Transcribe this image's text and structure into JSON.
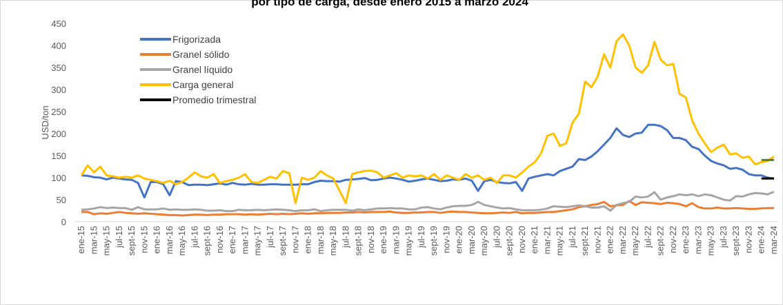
{
  "chart_data": {
    "type": "line",
    "title": "por tipo de carga, desde enero 2015 a marzo 2024",
    "y_label": "USD/ton",
    "categories": [
      "ene-15",
      null,
      "mar-15",
      null,
      "may-15",
      null,
      "jul-15",
      null,
      "sept-15",
      null,
      "nov-15",
      null,
      "ene-16",
      null,
      "mar-16",
      null,
      "may-16",
      null,
      "jul-16",
      null,
      "sept-16",
      null,
      "nov-16",
      null,
      "ene-17",
      null,
      "mar-17",
      null,
      "may-17",
      null,
      "jul-17",
      null,
      "sept-17",
      null,
      "nov-17",
      null,
      "ene-18",
      null,
      "mar-18",
      null,
      "may-18",
      null,
      "jul-18",
      null,
      "sept-18",
      null,
      "nov-18",
      null,
      "ene-19",
      null,
      "mar-19",
      null,
      "may-19",
      null,
      "jul-19",
      null,
      "sept-19",
      null,
      "nov-19",
      null,
      "ene-20",
      null,
      "mar-20",
      null,
      "may-20",
      null,
      "jul-20",
      null,
      "sept-20",
      null,
      "nov-20",
      null,
      "ene-21",
      null,
      "mar-21",
      null,
      "may-21",
      null,
      "jul-21",
      null,
      "sept-21",
      null,
      "nov-21",
      null,
      "ene-22",
      null,
      "mar-22",
      null,
      "may-22",
      null,
      "jul-22",
      null,
      "sept-22",
      null,
      "nov-22",
      null,
      "ene-23",
      null,
      "mar-23",
      null,
      "may-23",
      null,
      "jul-23",
      null,
      "sept-23",
      null,
      "nov-23",
      null,
      "ene-24",
      null,
      "mar-24"
    ],
    "series": [
      {
        "name": "Frigorizada",
        "color": "#4472c4",
        "values": [
          105,
          104,
          101,
          100,
          96,
          100,
          98,
          96,
          95,
          88,
          55,
          90,
          90,
          85,
          60,
          92,
          90,
          83,
          84,
          84,
          83,
          85,
          87,
          84,
          88,
          85,
          84,
          86,
          84,
          84,
          85,
          85,
          84,
          84,
          84,
          85,
          85,
          90,
          93,
          92,
          92,
          91,
          95,
          96,
          97,
          99,
          94,
          95,
          98,
          100,
          98,
          95,
          91,
          93,
          96,
          98,
          95,
          92,
          93,
          96,
          95,
          98,
          93,
          70,
          92,
          95,
          90,
          88,
          87,
          90,
          70,
          98,
          102,
          105,
          108,
          105,
          115,
          120,
          125,
          142,
          140,
          148,
          160,
          175,
          190,
          212,
          197,
          192,
          200,
          202,
          220,
          220,
          217,
          208,
          190,
          190,
          185,
          170,
          165,
          150,
          138,
          132,
          128,
          120,
          122,
          118,
          108,
          105,
          105,
          100,
          98
        ]
      },
      {
        "name": "Granel sólido",
        "color": "#ed7d31",
        "values": [
          22,
          22,
          17,
          19,
          18,
          20,
          22,
          20,
          19,
          18,
          19,
          18,
          17,
          16,
          15,
          15,
          14,
          15,
          16,
          16,
          15,
          16,
          16,
          17,
          17,
          17,
          16,
          17,
          16,
          17,
          18,
          17,
          18,
          17,
          18,
          19,
          18,
          19,
          19,
          20,
          20,
          20,
          21,
          21,
          22,
          21,
          22,
          22,
          22,
          23,
          21,
          20,
          20,
          21,
          21,
          22,
          22,
          20,
          22,
          23,
          22,
          22,
          21,
          20,
          19,
          19,
          20,
          21,
          20,
          22,
          19,
          20,
          20,
          21,
          22,
          22,
          24,
          26,
          28,
          33,
          35,
          38,
          40,
          45,
          35,
          37,
          38,
          47,
          38,
          44,
          43,
          42,
          40,
          43,
          42,
          40,
          35,
          42,
          33,
          30,
          30,
          32,
          30,
          30,
          31,
          30,
          29,
          29,
          30,
          31,
          31
        ]
      },
      {
        "name": "Granel líquido",
        "color": "#a5a5a5",
        "values": [
          27,
          28,
          30,
          33,
          31,
          32,
          31,
          31,
          27,
          33,
          28,
          28,
          28,
          30,
          27,
          28,
          27,
          27,
          28,
          27,
          25,
          25,
          26,
          24,
          24,
          27,
          26,
          26,
          27,
          26,
          27,
          28,
          27,
          26,
          24,
          26,
          26,
          28,
          24,
          26,
          27,
          27,
          27,
          25,
          28,
          26,
          28,
          30,
          30,
          31,
          30,
          30,
          28,
          28,
          32,
          33,
          30,
          28,
          32,
          35,
          36,
          36,
          38,
          45,
          38,
          35,
          32,
          30,
          31,
          28,
          26,
          26,
          26,
          27,
          30,
          35,
          34,
          33,
          35,
          37,
          35,
          32,
          32,
          35,
          25,
          38,
          42,
          45,
          57,
          55,
          57,
          67,
          50,
          55,
          58,
          62,
          60,
          62,
          58,
          62,
          60,
          55,
          50,
          48,
          58,
          57,
          62,
          65,
          64,
          62,
          68
        ]
      },
      {
        "name": "Carga general",
        "color": "#ffc000",
        "values": [
          105,
          128,
          112,
          125,
          105,
          103,
          100,
          102,
          100,
          105,
          98,
          95,
          92,
          88,
          93,
          85,
          90,
          100,
          112,
          103,
          100,
          108,
          88,
          92,
          95,
          100,
          108,
          90,
          88,
          95,
          102,
          98,
          115,
          110,
          42,
          100,
          95,
          100,
          115,
          105,
          98,
          70,
          42,
          108,
          112,
          115,
          116,
          112,
          100,
          105,
          110,
          100,
          105,
          103,
          105,
          98,
          108,
          95,
          105,
          100,
          95,
          108,
          100,
          105,
          95,
          100,
          88,
          105,
          105,
          100,
          112,
          125,
          135,
          155,
          195,
          200,
          172,
          178,
          225,
          245,
          318,
          305,
          330,
          380,
          350,
          410,
          425,
          400,
          350,
          338,
          355,
          408,
          368,
          355,
          358,
          290,
          282,
          230,
          200,
          178,
          158,
          168,
          175,
          153,
          155,
          145,
          148,
          130,
          135,
          138,
          148
        ]
      },
      {
        "name": "Promedio trimestral",
        "color": "#000000",
        "values": [
          null,
          null,
          null,
          null,
          null,
          null,
          null,
          null,
          null,
          null,
          null,
          null,
          null,
          null,
          null,
          null,
          null,
          null,
          null,
          null,
          null,
          null,
          null,
          null,
          null,
          null,
          null,
          null,
          null,
          null,
          null,
          null,
          null,
          null,
          null,
          null,
          null,
          null,
          null,
          null,
          null,
          null,
          null,
          null,
          null,
          null,
          null,
          null,
          null,
          null,
          null,
          null,
          null,
          null,
          null,
          null,
          null,
          null,
          null,
          null,
          null,
          null,
          null,
          null,
          null,
          null,
          null,
          null,
          null,
          null,
          null,
          null,
          null,
          null,
          null,
          null,
          null,
          null,
          null,
          null,
          null,
          null,
          null,
          null,
          null,
          null,
          null,
          null,
          null,
          null,
          null,
          null,
          null,
          null,
          null,
          null,
          null,
          null,
          null,
          null,
          null,
          null,
          null,
          null,
          null,
          null,
          null,
          null,
          98,
          98,
          98
        ]
      },
      {
        "color": "#548235",
        "values": [
          null,
          null,
          null,
          null,
          null,
          null,
          null,
          null,
          null,
          null,
          null,
          null,
          null,
          null,
          null,
          null,
          null,
          null,
          null,
          null,
          null,
          null,
          null,
          null,
          null,
          null,
          null,
          null,
          null,
          null,
          null,
          null,
          null,
          null,
          null,
          null,
          null,
          null,
          null,
          null,
          null,
          null,
          null,
          null,
          null,
          null,
          null,
          null,
          null,
          null,
          null,
          null,
          null,
          null,
          null,
          null,
          null,
          null,
          null,
          null,
          null,
          null,
          null,
          null,
          null,
          null,
          null,
          null,
          null,
          null,
          null,
          null,
          null,
          null,
          null,
          null,
          null,
          null,
          null,
          null,
          null,
          null,
          null,
          null,
          null,
          null,
          null,
          null,
          null,
          null,
          null,
          null,
          null,
          null,
          null,
          null,
          null,
          null,
          null,
          null,
          null,
          null,
          null,
          null,
          null,
          null,
          null,
          null,
          140,
          140,
          140
        ]
      }
    ],
    "ylim": [
      0,
      450
    ],
    "yticks": [
      0,
      50,
      100,
      150,
      200,
      250,
      300,
      350,
      400,
      450
    ]
  }
}
